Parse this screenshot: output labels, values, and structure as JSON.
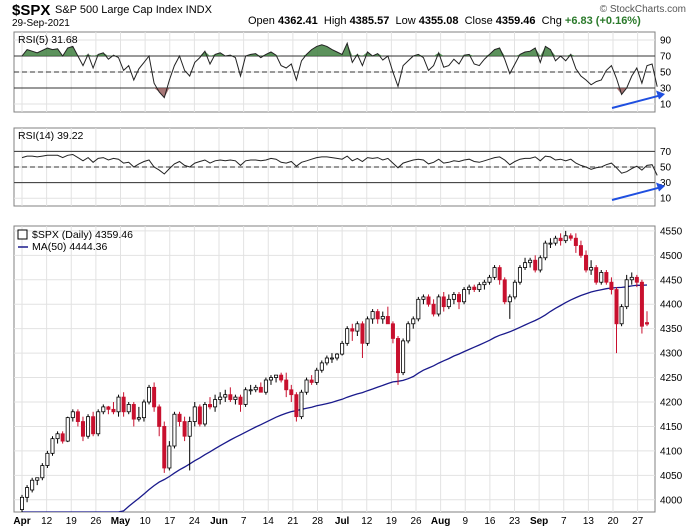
{
  "header": {
    "symbol": "$SPX",
    "description": "S&P 500 Large Cap Index INDX",
    "date": "29-Sep-2021",
    "open_label": "Open",
    "open": "4362.41",
    "high_label": "High",
    "high": "4385.57",
    "low_label": "Low",
    "low": "4355.08",
    "close_label": "Close",
    "close": "4359.46",
    "chg_label": "Chg",
    "chg": "+6.83 (+0.16%)",
    "brand": "© StockCharts.com"
  },
  "rsi5": {
    "label": "RSI(5) 31.68",
    "value": 31.68,
    "ticks": [
      10,
      30,
      50,
      70,
      90
    ]
  },
  "rsi14": {
    "label": "RSI(14) 39.22",
    "value": 39.22,
    "ticks": [
      10,
      30,
      50,
      70
    ]
  },
  "price": {
    "label": "$SPX (Daily) 4359.46",
    "ma_label": "MA(50) 4444.36",
    "ticks": [
      4000,
      4050,
      4100,
      4150,
      4200,
      4250,
      4300,
      4350,
      4400,
      4450,
      4500,
      4550
    ],
    "ylim": [
      3975,
      4560
    ]
  },
  "xaxis": {
    "labels": [
      "Apr",
      "12",
      "19",
      "26",
      "May",
      "10",
      "17",
      "24",
      "Jun",
      "7",
      "14",
      "21",
      "28",
      "Jul",
      "12",
      "19",
      "26",
      "Aug",
      "9",
      "16",
      "23",
      "Sep",
      "7",
      "13",
      "20",
      "27"
    ],
    "bold": [
      "Apr",
      "May",
      "Jun",
      "Jul",
      "Aug",
      "Sep"
    ]
  },
  "colors": {
    "up": "#000000",
    "down": "#c8102e",
    "ma": "#1a1a8c",
    "arrow": "#1f4fe0",
    "rsi_fill": "#3f7f3f"
  },
  "chart_data": [
    {
      "type": "line",
      "title": "RSI(5) 31.68",
      "ylim": [
        0,
        100
      ],
      "levels": [
        30,
        50,
        70
      ],
      "x": [
        "Apr-1",
        "Apr-5",
        "Apr-6",
        "Apr-7",
        "Apr-8",
        "Apr-9",
        "Apr-12",
        "Apr-13",
        "Apr-14",
        "Apr-15",
        "Apr-16",
        "Apr-19",
        "Apr-20",
        "Apr-21",
        "Apr-22",
        "Apr-23",
        "Apr-26",
        "Apr-27",
        "Apr-28",
        "Apr-29",
        "Apr-30",
        "May-3",
        "May-4",
        "May-5",
        "May-6",
        "May-7",
        "May-10",
        "May-11",
        "May-12",
        "May-13",
        "May-14",
        "May-17",
        "May-18",
        "May-19",
        "May-20",
        "May-21",
        "May-24",
        "May-25",
        "May-26",
        "May-27",
        "May-28",
        "Jun-1",
        "Jun-2",
        "Jun-3",
        "Jun-4",
        "Jun-7",
        "Jun-8",
        "Jun-9",
        "Jun-10",
        "Jun-11",
        "Jun-14",
        "Jun-15",
        "Jun-16",
        "Jun-17",
        "Jun-18",
        "Jun-21",
        "Jun-22",
        "Jun-23",
        "Jun-24",
        "Jun-25",
        "Jun-28",
        "Jun-29",
        "Jun-30",
        "Jul-1",
        "Jul-2",
        "Jul-6",
        "Jul-7",
        "Jul-8",
        "Jul-9",
        "Jul-12",
        "Jul-13",
        "Jul-14",
        "Jul-15",
        "Jul-16",
        "Jul-19",
        "Jul-20",
        "Jul-21",
        "Jul-22",
        "Jul-23",
        "Jul-26",
        "Jul-27",
        "Jul-28",
        "Jul-29",
        "Jul-30",
        "Aug-2",
        "Aug-3",
        "Aug-4",
        "Aug-5",
        "Aug-6",
        "Aug-9",
        "Aug-10",
        "Aug-11",
        "Aug-12",
        "Aug-13",
        "Aug-16",
        "Aug-17",
        "Aug-18",
        "Aug-19",
        "Aug-20",
        "Aug-23",
        "Aug-24",
        "Aug-25",
        "Aug-26",
        "Aug-27",
        "Aug-30",
        "Aug-31",
        "Sep-1",
        "Sep-2",
        "Sep-3",
        "Sep-7",
        "Sep-8",
        "Sep-9",
        "Sep-10",
        "Sep-13",
        "Sep-14",
        "Sep-15",
        "Sep-16",
        "Sep-17",
        "Sep-20",
        "Sep-21",
        "Sep-22",
        "Sep-23",
        "Sep-24",
        "Sep-27",
        "Sep-28",
        "Sep-29"
      ],
      "values": [
        70,
        78,
        76,
        74,
        77,
        80,
        78,
        79,
        70,
        80,
        82,
        70,
        58,
        72,
        55,
        72,
        74,
        66,
        71,
        68,
        52,
        58,
        40,
        54,
        62,
        70,
        36,
        25,
        18,
        40,
        58,
        70,
        52,
        45,
        62,
        68,
        76,
        60,
        72,
        74,
        70,
        71,
        68,
        45,
        70,
        72,
        73,
        68,
        72,
        75,
        71,
        58,
        55,
        60,
        40,
        64,
        72,
        78,
        82,
        84,
        82,
        78,
        75,
        72,
        86,
        62,
        72,
        58,
        75,
        70,
        73,
        65,
        70,
        50,
        32,
        58,
        64,
        70,
        72,
        68,
        52,
        58,
        74,
        56,
        58,
        66,
        60,
        71,
        72,
        60,
        58,
        66,
        72,
        78,
        80,
        66,
        48,
        60,
        72,
        75,
        76,
        80,
        62,
        82,
        78,
        64,
        70,
        64,
        72,
        54,
        45,
        40,
        34,
        38,
        40,
        52,
        58,
        42,
        22,
        30,
        45,
        55,
        36,
        58,
        60,
        31.68
      ]
    },
    {
      "type": "line",
      "title": "RSI(14) 39.22",
      "ylim": [
        0,
        100
      ],
      "levels": [
        30,
        50,
        70
      ],
      "values": [
        62,
        64,
        64,
        63,
        64,
        65,
        65,
        65,
        62,
        65,
        66,
        62,
        58,
        62,
        56,
        61,
        62,
        59,
        61,
        60,
        55,
        56,
        50,
        54,
        57,
        59,
        50,
        46,
        41,
        48,
        54,
        57,
        52,
        50,
        55,
        57,
        59,
        55,
        58,
        59,
        58,
        59,
        58,
        52,
        58,
        59,
        59,
        58,
        59,
        61,
        60,
        56,
        55,
        57,
        51,
        56,
        58,
        60,
        62,
        63,
        63,
        62,
        61,
        60,
        64,
        58,
        61,
        57,
        62,
        61,
        62,
        59,
        61,
        55,
        49,
        55,
        57,
        59,
        60,
        59,
        54,
        56,
        60,
        55,
        56,
        58,
        57,
        59,
        60,
        57,
        56,
        58,
        60,
        62,
        63,
        59,
        53,
        57,
        60,
        61,
        61,
        63,
        58,
        64,
        63,
        59,
        60,
        58,
        60,
        55,
        52,
        50,
        47,
        49,
        50,
        53,
        55,
        49,
        42,
        44,
        48,
        51,
        46,
        52,
        53,
        39.22
      ]
    },
    {
      "type": "candlestick",
      "title": "$SPX (Daily) 4359.46",
      "ylim": [
        3975,
        4560
      ],
      "ohlc": [
        [
          3980,
          4010,
          3975,
          4005
        ],
        [
          4005,
          4030,
          3995,
          4025
        ],
        [
          4020,
          4045,
          4015,
          4040
        ],
        [
          4040,
          4045,
          4030,
          4045
        ],
        [
          4045,
          4075,
          4040,
          4070
        ],
        [
          4070,
          4100,
          4065,
          4095
        ],
        [
          4095,
          4130,
          4090,
          4125
        ],
        [
          4125,
          4140,
          4115,
          4135
        ],
        [
          4135,
          4140,
          4115,
          4120
        ],
        [
          4120,
          4170,
          4118,
          4168
        ],
        [
          4168,
          4185,
          4160,
          4180
        ],
        [
          4180,
          4185,
          4150,
          4160
        ],
        [
          4160,
          4170,
          4120,
          4130
        ],
        [
          4130,
          4175,
          4125,
          4170
        ],
        [
          4170,
          4180,
          4130,
          4135
        ],
        [
          4135,
          4185,
          4130,
          4180
        ],
        [
          4180,
          4195,
          4175,
          4190
        ],
        [
          4190,
          4192,
          4175,
          4185
        ],
        [
          4185,
          4200,
          4175,
          4180
        ],
        [
          4180,
          4215,
          4170,
          4210
        ],
        [
          4210,
          4220,
          4170,
          4180
        ],
        [
          4180,
          4200,
          4175,
          4195
        ],
        [
          4195,
          4200,
          4150,
          4165
        ],
        [
          4165,
          4190,
          4160,
          4168
        ],
        [
          4168,
          4205,
          4160,
          4200
        ],
        [
          4200,
          4235,
          4195,
          4230
        ],
        [
          4230,
          4240,
          4180,
          4190
        ],
        [
          4190,
          4195,
          4130,
          4150
        ],
        [
          4150,
          4160,
          4055,
          4065
        ],
        [
          4065,
          4120,
          4060,
          4110
        ],
        [
          4110,
          4180,
          4105,
          4175
        ],
        [
          4175,
          4180,
          4150,
          4160
        ],
        [
          4160,
          4170,
          4120,
          4130
        ],
        [
          4130,
          4170,
          4060,
          4160
        ],
        [
          4160,
          4200,
          4150,
          4190
        ],
        [
          4190,
          4195,
          4150,
          4155
        ],
        [
          4155,
          4200,
          4150,
          4195
        ],
        [
          4195,
          4210,
          4185,
          4190
        ],
        [
          4190,
          4215,
          4180,
          4205
        ],
        [
          4205,
          4220,
          4195,
          4210
        ],
        [
          4210,
          4225,
          4200,
          4215
        ],
        [
          4215,
          4230,
          4200,
          4205
        ],
        [
          4205,
          4215,
          4195,
          4210
        ],
        [
          4210,
          4215,
          4180,
          4195
        ],
        [
          4195,
          4230,
          4190,
          4225
        ],
        [
          4225,
          4235,
          4215,
          4225
        ],
        [
          4225,
          4235,
          4220,
          4230
        ],
        [
          4230,
          4240,
          4220,
          4220
        ],
        [
          4220,
          4250,
          4215,
          4245
        ],
        [
          4245,
          4255,
          4235,
          4250
        ],
        [
          4250,
          4255,
          4240,
          4255
        ],
        [
          4255,
          4260,
          4240,
          4245
        ],
        [
          4245,
          4260,
          4210,
          4225
        ],
        [
          4225,
          4235,
          4200,
          4215
        ],
        [
          4215,
          4220,
          4160,
          4170
        ],
        [
          4170,
          4225,
          4165,
          4220
        ],
        [
          4220,
          4250,
          4215,
          4245
        ],
        [
          4245,
          4255,
          4235,
          4240
        ],
        [
          4240,
          4270,
          4235,
          4265
        ],
        [
          4265,
          4285,
          4260,
          4280
        ],
        [
          4280,
          4295,
          4275,
          4290
        ],
        [
          4290,
          4300,
          4280,
          4290
        ],
        [
          4290,
          4300,
          4285,
          4298
        ],
        [
          4298,
          4325,
          4295,
          4320
        ],
        [
          4320,
          4355,
          4315,
          4350
        ],
        [
          4350,
          4360,
          4325,
          4345
        ],
        [
          4345,
          4365,
          4335,
          4360
        ],
        [
          4360,
          4365,
          4290,
          4320
        ],
        [
          4320,
          4375,
          4315,
          4370
        ],
        [
          4370,
          4390,
          4360,
          4385
        ],
        [
          4385,
          4390,
          4360,
          4370
        ],
        [
          4370,
          4385,
          4360,
          4375
        ],
        [
          4375,
          4395,
          4365,
          4360
        ],
        [
          4360,
          4365,
          4320,
          4330
        ],
        [
          4330,
          4335,
          4235,
          4260
        ],
        [
          4260,
          4330,
          4255,
          4325
        ],
        [
          4325,
          4365,
          4320,
          4360
        ],
        [
          4360,
          4375,
          4350,
          4370
        ],
        [
          4370,
          4415,
          4365,
          4410
        ],
        [
          4410,
          4420,
          4400,
          4415
        ],
        [
          4415,
          4420,
          4395,
          4400
        ],
        [
          4400,
          4410,
          4375,
          4380
        ],
        [
          4380,
          4420,
          4375,
          4415
        ],
        [
          4415,
          4425,
          4385,
          4395
        ],
        [
          4395,
          4420,
          4390,
          4410
        ],
        [
          4410,
          4425,
          4400,
          4420
        ],
        [
          4420,
          4425,
          4390,
          4405
        ],
        [
          4405,
          4435,
          4400,
          4430
        ],
        [
          4430,
          4440,
          4420,
          4435
        ],
        [
          4435,
          4440,
          4425,
          4430
        ],
        [
          4430,
          4445,
          4425,
          4440
        ],
        [
          4440,
          4450,
          4430,
          4445
        ],
        [
          4445,
          4460,
          4440,
          4455
        ],
        [
          4455,
          4480,
          4450,
          4475
        ],
        [
          4475,
          4480,
          4440,
          4450
        ],
        [
          4450,
          4455,
          4400,
          4405
        ],
        [
          4405,
          4420,
          4370,
          4415
        ],
        [
          4415,
          4450,
          4410,
          4445
        ],
        [
          4445,
          4480,
          4440,
          4475
        ],
        [
          4475,
          4495,
          4470,
          4485
        ],
        [
          4485,
          4495,
          4475,
          4490
        ],
        [
          4490,
          4500,
          4465,
          4470
        ],
        [
          4470,
          4500,
          4465,
          4495
        ],
        [
          4495,
          4530,
          4490,
          4525
        ],
        [
          4525,
          4535,
          4515,
          4525
        ],
        [
          4525,
          4540,
          4520,
          4535
        ],
        [
          4535,
          4545,
          4520,
          4530
        ],
        [
          4530,
          4550,
          4525,
          4540
        ],
        [
          4540,
          4545,
          4530,
          4535
        ],
        [
          4535,
          4545,
          4505,
          4520
        ],
        [
          4520,
          4530,
          4495,
          4500
        ],
        [
          4500,
          4510,
          4465,
          4470
        ],
        [
          4470,
          4490,
          4460,
          4475
        ],
        [
          4475,
          4480,
          4440,
          4445
        ],
        [
          4445,
          4470,
          4440,
          4465
        ],
        [
          4465,
          4470,
          4440,
          4445
        ],
        [
          4445,
          4455,
          4420,
          4430
        ],
        [
          4430,
          4435,
          4300,
          4360
        ],
        [
          4360,
          4400,
          4355,
          4395
        ],
        [
          4395,
          4460,
          4390,
          4450
        ],
        [
          4450,
          4465,
          4440,
          4455
        ],
        [
          4455,
          4460,
          4435,
          4445
        ],
        [
          4445,
          4450,
          4340,
          4355
        ],
        [
          4362.41,
          4385.57,
          4355.08,
          4359.46
        ]
      ]
    }
  ]
}
